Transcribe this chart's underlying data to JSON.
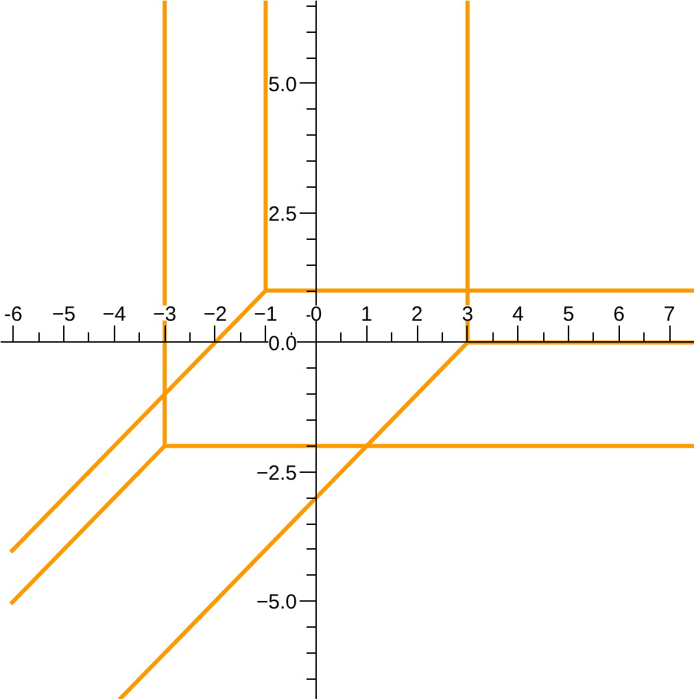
{
  "chart_data": {
    "type": "line",
    "xlim": [
      -6.25,
      7.5
    ],
    "ylim": [
      -6.9,
      6.6
    ],
    "xticks": [
      {
        "value": -6,
        "label": "-6"
      },
      {
        "value": -5,
        "label": "−5"
      },
      {
        "value": -4,
        "label": "−4"
      },
      {
        "value": -3,
        "label": "−3"
      },
      {
        "value": -2,
        "label": "−2"
      },
      {
        "value": -1,
        "label": "−1"
      },
      0,
      1,
      2,
      3,
      4,
      5,
      6,
      7
    ],
    "yticks": [
      {
        "value": -5,
        "label": "−5.0"
      },
      {
        "value": -2.5,
        "label": "−2.5"
      },
      {
        "value": 0,
        "label": "0.0"
      },
      {
        "value": 2.5,
        "label": "2.5"
      },
      {
        "value": 5,
        "label": "5.0"
      }
    ],
    "grid": false,
    "series": [
      {
        "color": "#ff9900",
        "x": [
          -6.05,
          -1,
          -1
        ],
        "values": [
          -4.05,
          1,
          6.6
        ]
      },
      {
        "color": "#ff9900",
        "x": [
          -1,
          7.5
        ],
        "values": [
          1,
          1
        ]
      },
      {
        "color": "#ff9900",
        "x": [
          -6.05,
          -3,
          -3
        ],
        "values": [
          -5.05,
          -2,
          6.6
        ]
      },
      {
        "color": "#ff9900",
        "x": [
          -3,
          7.5
        ],
        "values": [
          -2,
          -2
        ]
      },
      {
        "color": "#ff9900",
        "x": [
          -3.9,
          3,
          3
        ],
        "values": [
          -6.9,
          0,
          6.6
        ]
      },
      {
        "color": "#ff9900",
        "x": [
          3,
          7.5
        ],
        "values": [
          0,
          0
        ]
      }
    ]
  }
}
